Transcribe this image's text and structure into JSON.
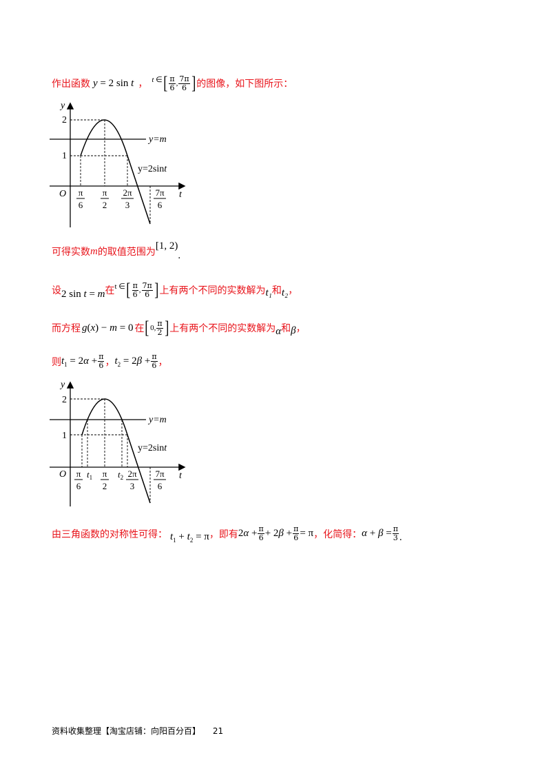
{
  "line1": {
    "prefix": "作出函数",
    "func": "y = 2 sin t",
    "domain_var": "t ∈",
    "domain_a": "π/6",
    "domain_b": "7π/6",
    "suffix": "的图像，如下图所示："
  },
  "graph1": {
    "y_axis": "y",
    "x_axis": "t",
    "origin": "O",
    "y_ticks": [
      "2",
      "1"
    ],
    "x_ticks": [
      "π/6",
      "π/2",
      "2π/3",
      "7π/6"
    ],
    "line_label": "y=m",
    "curve_label": "y=2sint"
  },
  "line2": {
    "prefix": "可得实数",
    "var": "m",
    "middle": "的取值范围为",
    "interval": "[1, 2)",
    "end": "."
  },
  "line3": {
    "prefix": "设",
    "eq": "2 sin t = m",
    "in": "在",
    "domain_var": "t ∈",
    "domain_a": "π/6",
    "domain_b": "7π/6",
    "middle": "上有两个不同的实数解为",
    "t1": "t₁",
    "and": "和",
    "t2": "t₂",
    "end": "，"
  },
  "line4": {
    "prefix": "而方程",
    "eq": "g(x) − m = 0",
    "in": "在",
    "interval": "[0, π/2]",
    "middle": "上有两个不同的实数解为",
    "alpha": "α",
    "and": "和",
    "beta": "β",
    "end": "，"
  },
  "line5": {
    "prefix": "则",
    "eq1": "t₁ = 2α + π/6",
    "sep": "，",
    "eq2": "t₂ = 2β + π/6",
    "end": "，"
  },
  "graph2": {
    "y_axis": "y",
    "x_axis": "t",
    "origin": "O",
    "y_ticks": [
      "2",
      "1"
    ],
    "x_ticks": [
      "π/6",
      "t₁",
      "π/2",
      "t₂",
      "2π/3",
      "7π/6"
    ],
    "line_label": "y=m",
    "curve_label": "y=2sint"
  },
  "line6": {
    "prefix": "由三角函数的对称性可得：",
    "eq1": "t₁ + t₂ = π",
    "mid": "，即有",
    "eq2": "2α + π/6 + 2β + π/6 = π",
    "mid2": "，化简得：",
    "eq3": "α + β = π/3",
    "end": "."
  },
  "footer": {
    "text": "资料收集整理【淘宝店铺：向阳百分百】",
    "page": "21"
  },
  "colors": {
    "text_red": "#e8141b",
    "text_black": "#000000"
  }
}
